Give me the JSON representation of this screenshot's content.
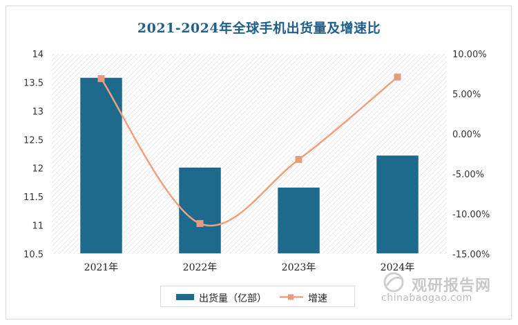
{
  "chart_data": {
    "type": "bar+line",
    "title": "2021-2024年全球手机出货量及增速比",
    "categories": [
      "2021年",
      "2022年",
      "2023年",
      "2024年"
    ],
    "series": [
      {
        "name": "出货量（亿部）",
        "type": "bar",
        "axis": "left",
        "values": [
          13.59,
          12.02,
          11.67,
          12.23
        ]
      },
      {
        "name": "增速",
        "type": "line",
        "axis": "right",
        "values": [
          0.069,
          -0.112,
          -0.032,
          0.071
        ]
      }
    ],
    "y_left": {
      "lim": [
        10.5,
        14
      ],
      "ticks": [
        "10.5",
        "11",
        "11.5",
        "12",
        "12.5",
        "13",
        "13.5",
        "14"
      ]
    },
    "y_right": {
      "lim": [
        -0.15,
        0.1
      ],
      "ticks": [
        "-15.00%",
        "-10.00%",
        "-5.00%",
        "0.00%",
        "5.00%",
        "10.00%"
      ]
    },
    "legend_position": "bottom",
    "colors": {
      "bar": "#1e6a8d",
      "line": "#f2a07b",
      "marker": "#e59b7d",
      "title": "#1f5f8b"
    }
  },
  "watermark": {
    "text": "观研报告网",
    "url": "chinabaogao.com"
  }
}
